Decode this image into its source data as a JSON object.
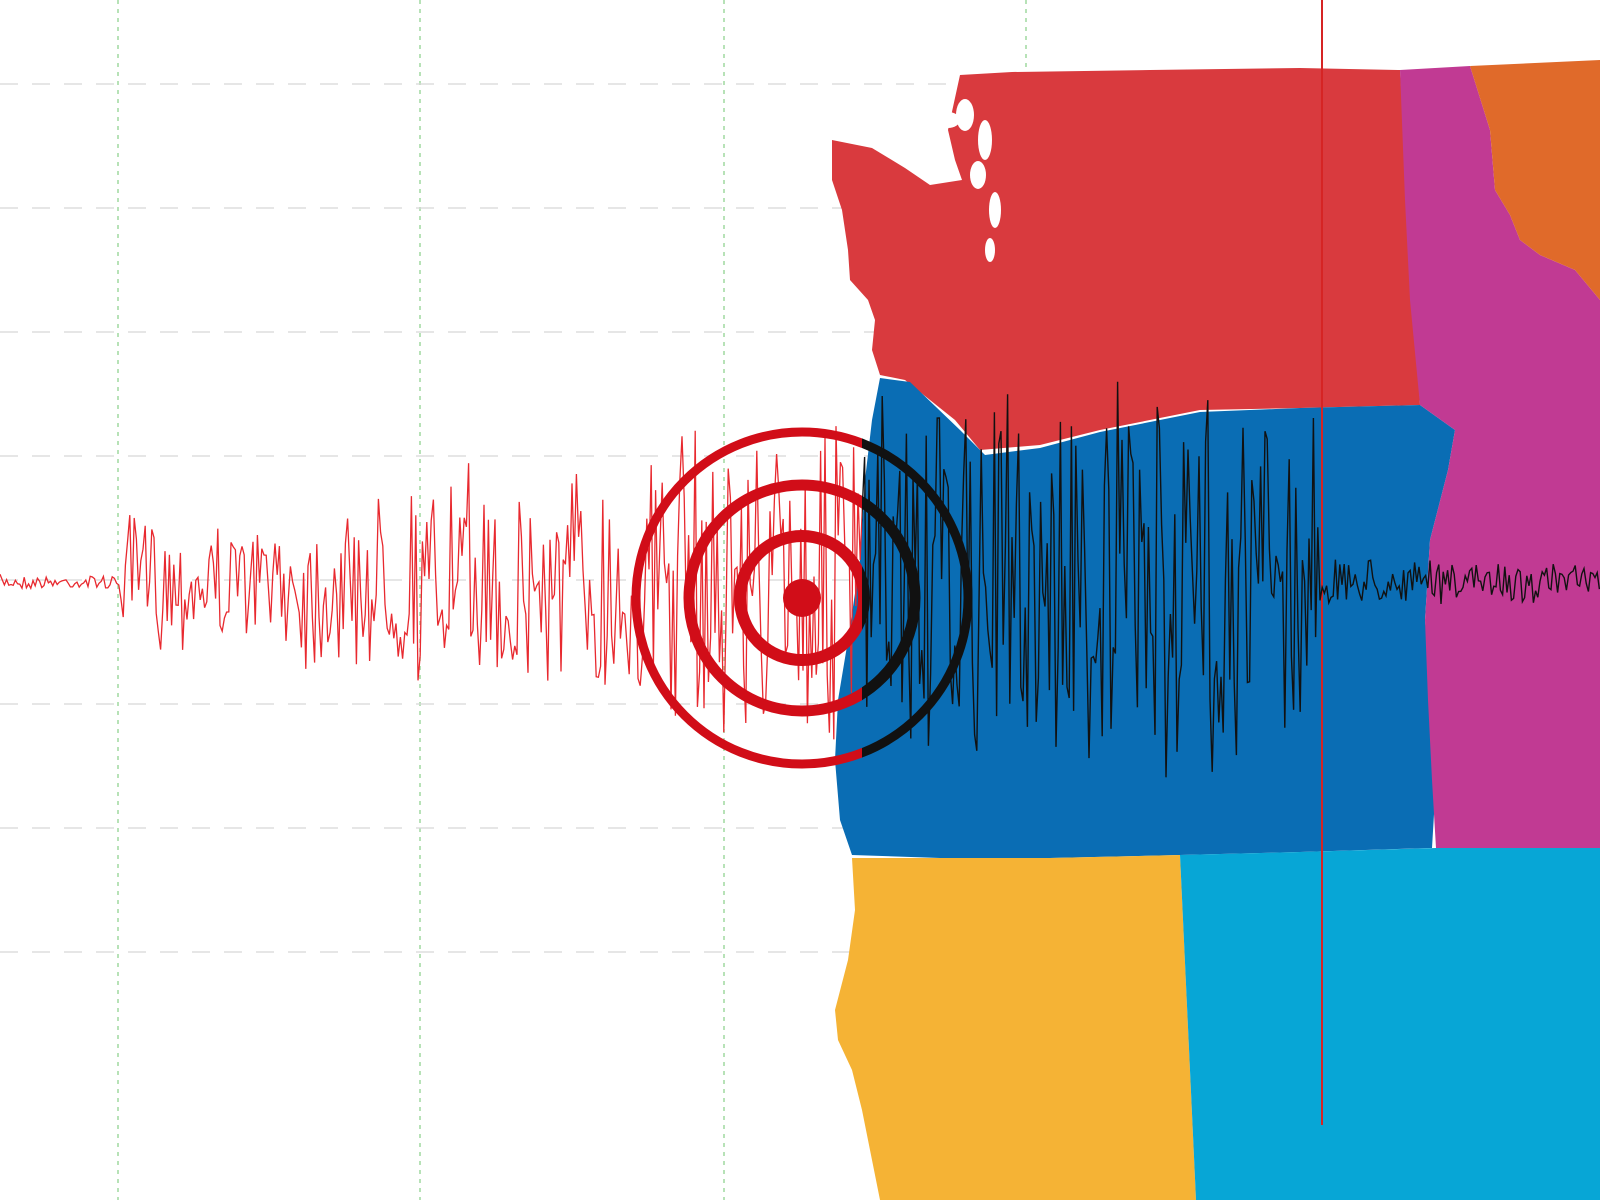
{
  "image": {
    "subject": "seismogram-over-pacific-northwest-map",
    "colors": {
      "background": "#ffffff",
      "gridline": "#9fd89f",
      "gridline_horizontal": "#d8d8d8",
      "washington": "#d93a3e",
      "oregon": "#0a6db4",
      "idaho": "#c13a93",
      "montana": "#e06a2a",
      "california": "#f5b335",
      "nevada": "#07a6d6",
      "trace_left": "#e8292f",
      "trace_right": "#111111",
      "epicenter": "#d10d18",
      "meridian_line": "#d62424"
    },
    "icons": [
      "earthquake-epicenter-icon"
    ],
    "regions": [
      "washington",
      "oregon",
      "idaho",
      "montana",
      "california",
      "nevada"
    ]
  }
}
